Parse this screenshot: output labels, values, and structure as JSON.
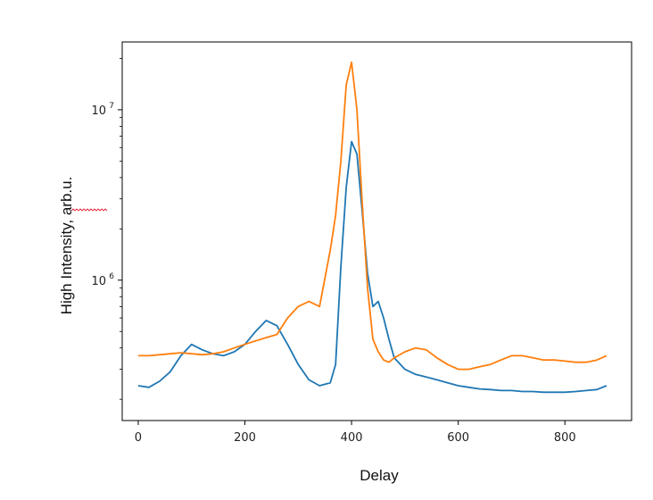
{
  "chart_data": {
    "type": "line",
    "xlabel": "Delay",
    "ylabel": "High Intensity, arb.u.",
    "yscale": "log",
    "xlim": [
      -30,
      925
    ],
    "ylim": [
      150000,
      25000000
    ],
    "xticks": [
      0,
      200,
      400,
      600,
      800
    ],
    "yticks": [
      {
        "value": 1000000,
        "base": "10",
        "exponent": "6"
      },
      {
        "value": 10000000,
        "base": "10",
        "exponent": "7"
      }
    ],
    "grid": false,
    "legend": "none",
    "colors": {
      "series_1": "#1f77b4",
      "series_2": "#ff7f0e"
    },
    "series": [
      {
        "color": "#1f77b4",
        "x": [
          0,
          20,
          40,
          60,
          80,
          100,
          120,
          140,
          160,
          180,
          200,
          220,
          240,
          260,
          280,
          300,
          320,
          340,
          360,
          370,
          380,
          390,
          400,
          410,
          420,
          430,
          440,
          450,
          460,
          470,
          480,
          500,
          520,
          540,
          560,
          580,
          600,
          620,
          640,
          660,
          680,
          700,
          720,
          740,
          760,
          780,
          800,
          820,
          840,
          860,
          878
        ],
        "y": [
          240000,
          235000,
          255000,
          290000,
          360000,
          420000,
          390000,
          370000,
          360000,
          380000,
          420000,
          500000,
          580000,
          540000,
          420000,
          320000,
          260000,
          240000,
          250000,
          320000,
          1200000,
          3500000,
          6500000,
          5500000,
          2500000,
          1100000,
          700000,
          750000,
          600000,
          450000,
          350000,
          300000,
          280000,
          270000,
          260000,
          250000,
          240000,
          235000,
          230000,
          228000,
          225000,
          225000,
          222000,
          222000,
          220000,
          220000,
          220000,
          222000,
          225000,
          228000,
          240000
        ]
      },
      {
        "color": "#ff7f0e",
        "x": [
          0,
          20,
          40,
          60,
          80,
          100,
          120,
          140,
          160,
          180,
          200,
          220,
          240,
          260,
          280,
          300,
          320,
          340,
          360,
          370,
          380,
          390,
          400,
          410,
          420,
          430,
          440,
          450,
          460,
          470,
          480,
          500,
          520,
          540,
          560,
          580,
          600,
          620,
          640,
          660,
          680,
          700,
          720,
          740,
          760,
          780,
          800,
          820,
          840,
          860,
          878
        ],
        "y": [
          360000,
          360000,
          365000,
          370000,
          375000,
          370000,
          365000,
          370000,
          380000,
          400000,
          420000,
          440000,
          460000,
          480000,
          600000,
          700000,
          750000,
          700000,
          1500000,
          2400000,
          5000000,
          14000000,
          19000000,
          10000000,
          2800000,
          900000,
          450000,
          380000,
          340000,
          330000,
          350000,
          380000,
          400000,
          390000,
          350000,
          320000,
          300000,
          300000,
          310000,
          320000,
          340000,
          360000,
          360000,
          350000,
          340000,
          340000,
          335000,
          330000,
          330000,
          340000,
          360000
        ]
      }
    ]
  }
}
